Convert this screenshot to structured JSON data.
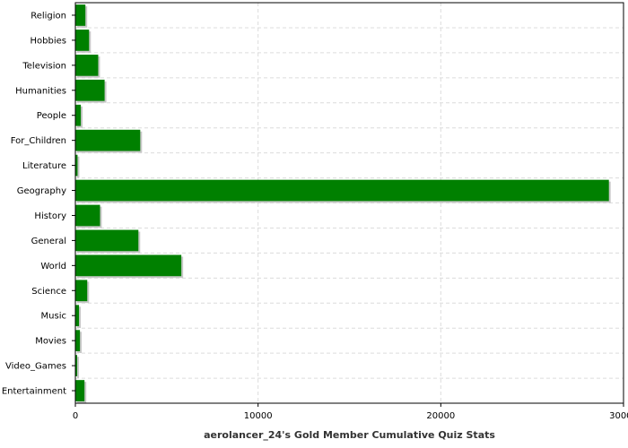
{
  "chart_data": {
    "type": "bar",
    "orientation": "horizontal",
    "title": "",
    "xlabel": "aerolancer_24's Gold Member Cumulative Quiz Stats",
    "ylabel": "",
    "categories": [
      "Religion",
      "Hobbies",
      "Television",
      "Humanities",
      "People",
      "For_Children",
      "Literature",
      "Geography",
      "History",
      "General",
      "World",
      "Science",
      "Music",
      "Movies",
      "Video_Games",
      "Entertainment"
    ],
    "values": [
      550,
      750,
      1250,
      1600,
      300,
      3550,
      120,
      29200,
      1350,
      3450,
      5800,
      650,
      200,
      250,
      100,
      500
    ],
    "xlim": [
      0,
      30000
    ],
    "xticks": [
      0,
      10000,
      20000,
      30000
    ],
    "xtick_labels": [
      "0",
      "10000",
      "20000",
      "30000"
    ],
    "grid": true,
    "legend": "none",
    "bar_color": "#008000",
    "bar_shadow_color": "#c8c8c8"
  }
}
